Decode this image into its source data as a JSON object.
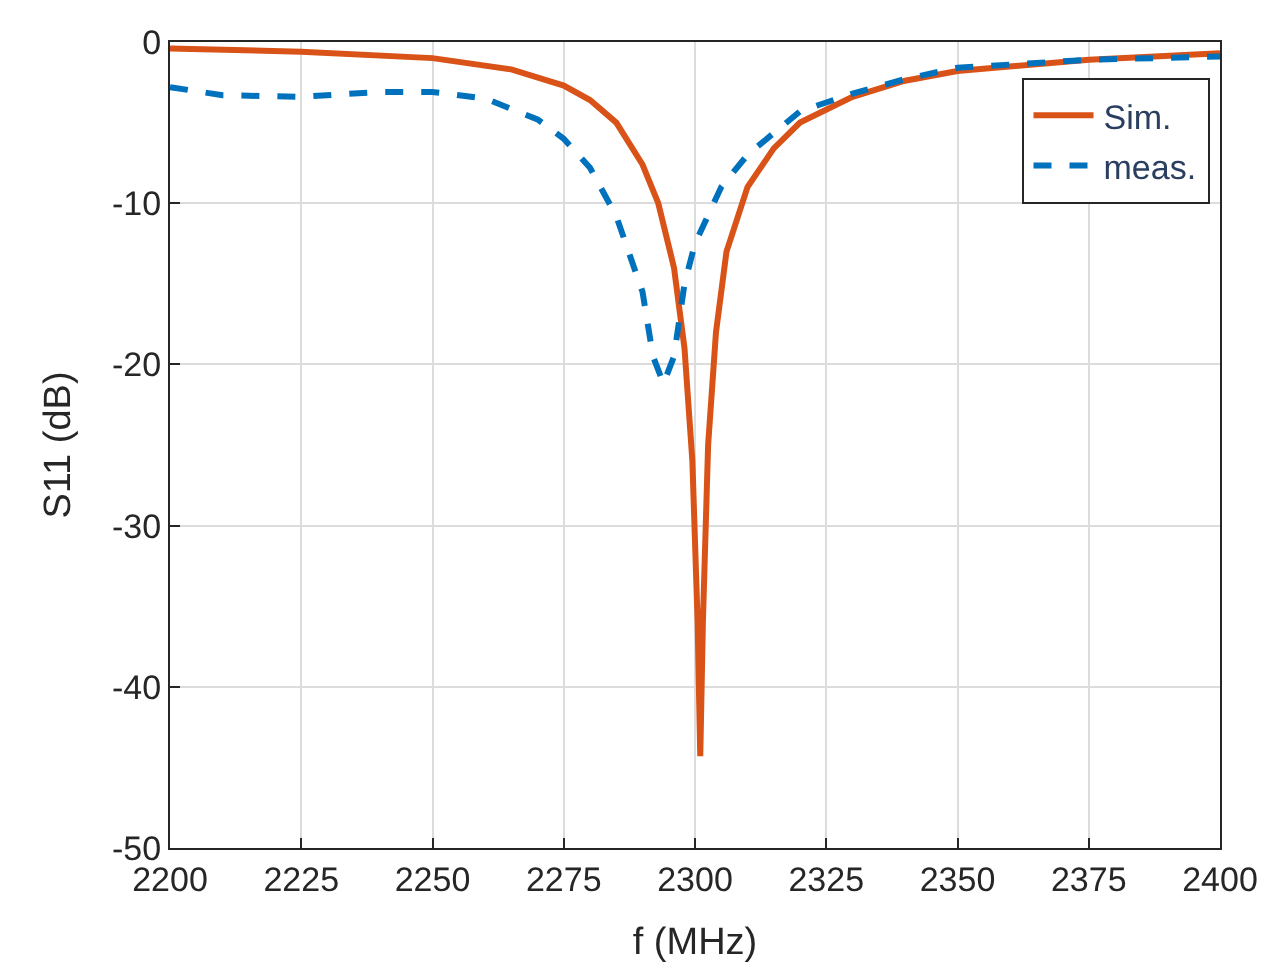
{
  "chart_data": {
    "type": "line",
    "xlabel": "f (MHz)",
    "ylabel": "S11 (dB)",
    "xlim": [
      2200,
      2400
    ],
    "ylim": [
      -50,
      0
    ],
    "xticks": [
      2200,
      2225,
      2250,
      2275,
      2300,
      2325,
      2350,
      2375,
      2400
    ],
    "yticks": [
      -50,
      -40,
      -30,
      -20,
      -10,
      0
    ],
    "grid": true,
    "legend": "top right",
    "marker": "none",
    "series": [
      {
        "name": "Sim.",
        "color": "#d95319",
        "line_style": "solid",
        "x": [
          2200,
          2225,
          2250,
          2265,
          2275,
          2280,
          2285,
          2290,
          2293,
          2296,
          2298,
          2299.5,
          2300.5,
          2301,
          2301.5,
          2302.5,
          2304,
          2306,
          2310,
          2315,
          2320,
          2330,
          2340,
          2350,
          2375,
          2400
        ],
        "values": [
          -0.4,
          -0.6,
          -1.0,
          -1.7,
          -2.7,
          -3.6,
          -5,
          -7.6,
          -10,
          -14,
          -19,
          -26,
          -36,
          -44.3,
          -36,
          -25,
          -18,
          -13,
          -9,
          -6.6,
          -5,
          -3.4,
          -2.4,
          -1.8,
          -1.1,
          -0.7
        ]
      },
      {
        "name": "meas.",
        "color": "#0072bd",
        "line_style": "dashed",
        "x": [
          2200,
          2210,
          2225,
          2240,
          2250,
          2260,
          2270,
          2275,
          2280,
          2285,
          2290,
          2292,
          2294,
          2296,
          2298,
          2300,
          2305,
          2310,
          2320,
          2330,
          2340,
          2350,
          2375,
          2400
        ],
        "values": [
          -2.8,
          -3.3,
          -3.4,
          -3.1,
          -3.1,
          -3.5,
          -4.8,
          -6,
          -7.8,
          -10.8,
          -15.5,
          -19.5,
          -21.2,
          -19.5,
          -15,
          -12.5,
          -9,
          -7,
          -4.3,
          -3.2,
          -2.3,
          -1.6,
          -1.1,
          -0.9
        ]
      }
    ]
  }
}
